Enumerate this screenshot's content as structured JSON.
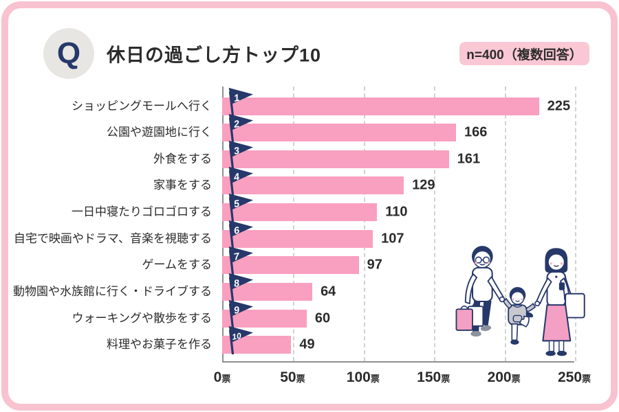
{
  "header": {
    "q_label": "Q",
    "title": "休日の過ごし方トップ10",
    "badge": "n=400（複数回答）"
  },
  "chart_data": {
    "type": "bar",
    "orientation": "horizontal",
    "title": "休日の過ごし方トップ10",
    "sample_note": "n=400（複数回答）",
    "categories": [
      "ショッピングモールへ行く",
      "公園や遊園地に行く",
      "外食をする",
      "家事をする",
      "一日中寝たりゴロゴロする",
      "自宅で映画やドラマ、音楽を視聴する",
      "ゲームをする",
      "動物園や水族館に行く・ドライブする",
      "ウォーキングや散歩をする",
      "料理やお菓子を作る"
    ],
    "values": [
      225,
      166,
      161,
      129,
      110,
      107,
      97,
      64,
      60,
      49
    ],
    "ranks": [
      1,
      2,
      3,
      4,
      5,
      6,
      7,
      8,
      9,
      10
    ],
    "xlim": [
      0,
      250
    ],
    "x_ticks": [
      0,
      50,
      100,
      150,
      200,
      250
    ],
    "x_unit": "票",
    "grid": "dashed-vertical",
    "legend": "none"
  },
  "colors": {
    "frame_pink": "#f9c2d0",
    "badge_pink": "#fac8d5",
    "bar_pink": "#f99fc0",
    "flag_navy": "#27386a",
    "text_dark": "#2b2b2b",
    "q_circle_gray": "#e8e6e3",
    "axis_gray": "#8f8f8f",
    "grid_gray": "#d2d2d2",
    "skirt_pink": "#f49fc4",
    "hoodie_gray": "#c7c9cf"
  }
}
